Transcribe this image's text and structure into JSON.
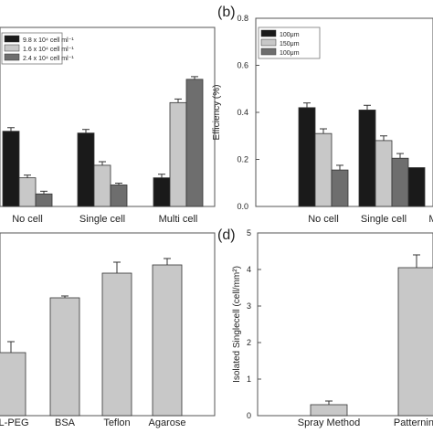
{
  "chart_data": [
    {
      "id": "a",
      "type": "bar",
      "panel_label": "",
      "title": "",
      "xlabel": "",
      "ylabel": "",
      "ylim": [
        0,
        1.0
      ],
      "yticks": [],
      "categories": [
        "No cell",
        "Single cell",
        "Multi cell"
      ],
      "series": [
        {
          "name": "9.8 x 10⁴ cell ml⁻¹",
          "color": "#1a1a1a",
          "values": [
            0.42,
            0.41,
            0.16
          ],
          "errors": [
            0.02,
            0.02,
            0.02
          ]
        },
        {
          "name": "1.6 x 10⁴ cell ml⁻¹",
          "color": "#c8c8c8",
          "values": [
            0.16,
            0.23,
            0.58
          ],
          "errors": [
            0.015,
            0.02,
            0.02
          ]
        },
        {
          "name": "2.4 x 10⁴ cell ml⁻¹",
          "color": "#6e6e6e",
          "values": [
            0.07,
            0.12,
            0.71
          ],
          "errors": [
            0.015,
            0.01,
            0.015
          ]
        }
      ],
      "legend": "top-left",
      "grid": false
    },
    {
      "id": "b",
      "type": "bar",
      "panel_label": "(b)",
      "title": "",
      "xlabel": "",
      "ylabel": "Efficiency (%)",
      "ylim": [
        0,
        0.8
      ],
      "yticks": [
        "0.0",
        "0.2",
        "0.4",
        "0.6",
        "0.8"
      ],
      "categories": [
        "No cell",
        "Single cell",
        "M"
      ],
      "series": [
        {
          "name": "100μm",
          "color": "#1a1a1a",
          "values": [
            0.42,
            0.41,
            0.165
          ],
          "errors": [
            0.02,
            0.02,
            0.0
          ]
        },
        {
          "name": "150μm",
          "color": "#c8c8c8",
          "values": [
            0.31,
            0.28,
            0.0
          ],
          "errors": [
            0.02,
            0.02,
            0.0
          ]
        },
        {
          "name": "100μm",
          "color": "#6e6e6e",
          "values": [
            0.155,
            0.205,
            0.0
          ],
          "errors": [
            0.02,
            0.02,
            0.0
          ]
        }
      ],
      "legend": "top-right",
      "grid": false
    },
    {
      "id": "c",
      "type": "bar",
      "panel_label": "",
      "title": "",
      "xlabel": "",
      "ylabel": "",
      "ylim": [
        0,
        1.0
      ],
      "yticks": [],
      "categories": [
        "LL-PEG",
        "BSA",
        "Teflon",
        "Agarose"
      ],
      "series": [
        {
          "name": "",
          "color": "#c8c8c8",
          "values": [
            0.345,
            0.645,
            0.78,
            0.825
          ],
          "errors": [
            0.06,
            0.01,
            0.06,
            0.035
          ]
        }
      ],
      "legend": "none",
      "grid": false
    },
    {
      "id": "d",
      "type": "bar",
      "panel_label": "(d)",
      "title": "",
      "xlabel": "",
      "ylabel": "Isolated Singlecell (cell/mm²)",
      "ylim": [
        0,
        5
      ],
      "yticks": [
        "0",
        "1",
        "2",
        "3",
        "4",
        "5"
      ],
      "categories": [
        "Spray Method",
        "Patterning"
      ],
      "series": [
        {
          "name": "",
          "color": "#c8c8c8",
          "values": [
            0.3,
            4.05
          ],
          "errors": [
            0.1,
            0.35
          ]
        }
      ],
      "legend": "none",
      "grid": false
    }
  ]
}
